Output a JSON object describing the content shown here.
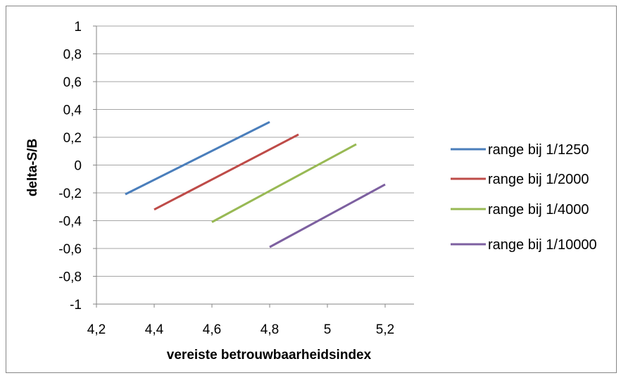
{
  "chart_data": {
    "type": "line",
    "xlabel": "vereiste betrouwbaarheidsindex",
    "ylabel": "delta-S/B",
    "xlim": [
      4.2,
      5.3
    ],
    "ylim": [
      -1,
      1
    ],
    "x_ticks": [
      4.2,
      4.4,
      4.6,
      4.8,
      5.0,
      5.2
    ],
    "x_tick_labels": [
      "4,2",
      "4,4",
      "4,6",
      "4,8",
      "5",
      "5,2"
    ],
    "y_ticks": [
      1,
      0.8,
      0.6,
      0.4,
      0.2,
      0,
      -0.2,
      -0.4,
      -0.6,
      -0.8,
      -1
    ],
    "y_tick_labels": [
      "1",
      "0,8",
      "0,6",
      "0,4",
      "0,2",
      "0",
      "-0,2",
      "-0,4",
      "-0,6",
      "-0,8",
      "-1"
    ],
    "grid": {
      "horizontal": true,
      "vertical": false
    },
    "legend": "right",
    "series": [
      {
        "name": "range bij 1/1250",
        "color": "#4A7EBB",
        "points": [
          [
            4.3,
            -0.21
          ],
          [
            4.8,
            0.31
          ]
        ]
      },
      {
        "name": "range bij 1/2000",
        "color": "#BE4B48",
        "points": [
          [
            4.4,
            -0.32
          ],
          [
            4.9,
            0.22
          ]
        ]
      },
      {
        "name": "range bij 1/4000",
        "color": "#98B954",
        "points": [
          [
            4.6,
            -0.41
          ],
          [
            5.1,
            0.15
          ]
        ]
      },
      {
        "name": "range bij 1/10000",
        "color": "#7D60A0",
        "points": [
          [
            4.8,
            -0.59
          ],
          [
            5.2,
            -0.14
          ]
        ]
      }
    ]
  }
}
